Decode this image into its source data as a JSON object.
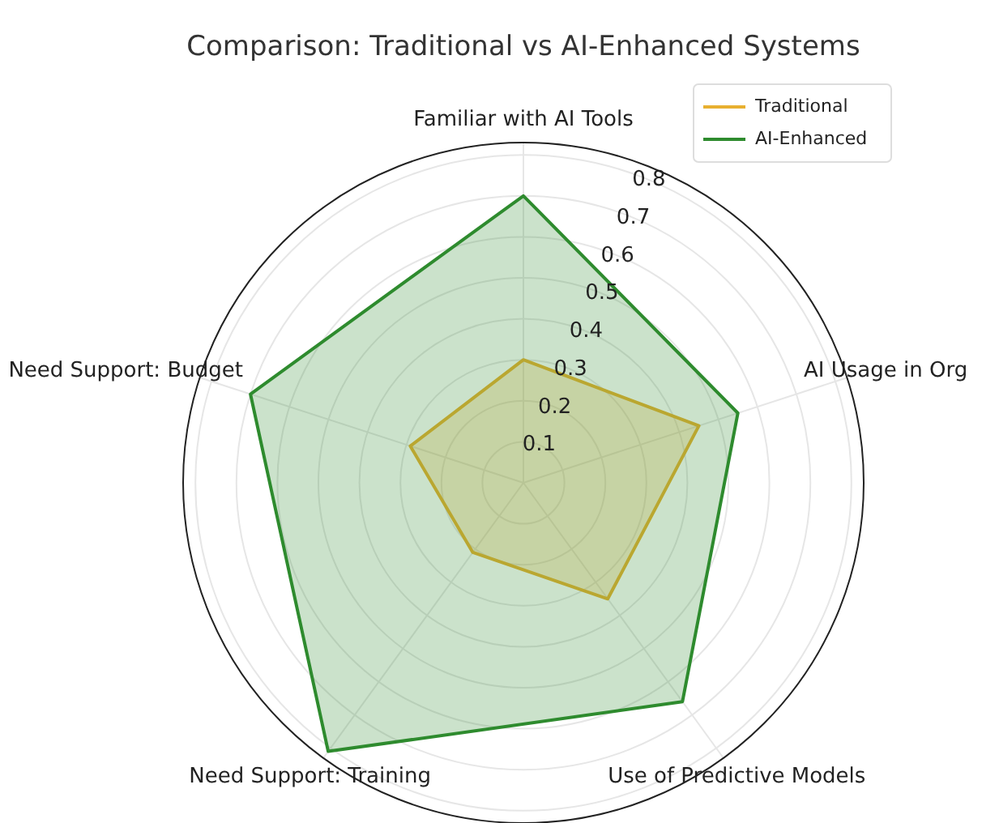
{
  "chart_data": {
    "type": "radar",
    "title": "Comparison: Traditional vs AI-Enhanced Systems",
    "categories": [
      "Familiar with AI Tools",
      "AI Usage in Org",
      "Use of Predictive Models",
      "Need Support: Training",
      "Need Support: Budget"
    ],
    "series": [
      {
        "name": "Traditional",
        "color": "#e8b030",
        "values": [
          0.3,
          0.45,
          0.35,
          0.21,
          0.29
        ]
      },
      {
        "name": "AI-Enhanced",
        "color": "#2e8b2e",
        "values": [
          0.7,
          0.55,
          0.66,
          0.81,
          0.7
        ]
      }
    ],
    "ylim": [
      0,
      0.83
    ],
    "yticks": [
      0.1,
      0.2,
      0.3,
      0.4,
      0.5,
      0.6,
      0.7,
      0.8
    ],
    "grid": true,
    "legend": "top right"
  }
}
